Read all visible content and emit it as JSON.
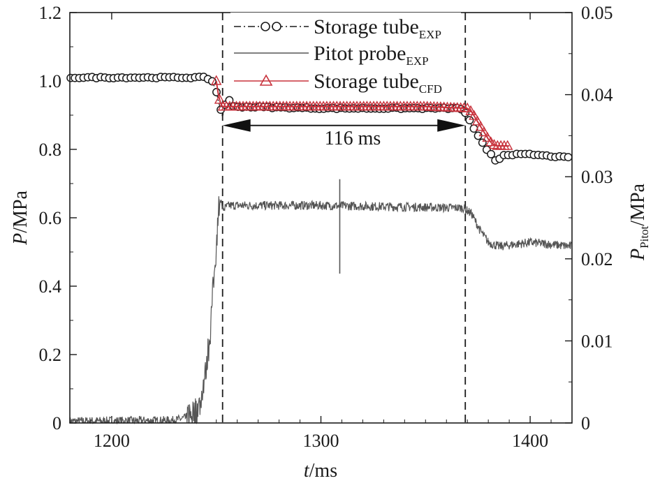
{
  "chart_data": {
    "type": "line",
    "title": "",
    "xlabel": {
      "var": "t",
      "unit": "/ms"
    },
    "ylabel_left": {
      "var": "P",
      "unit": "/MPa"
    },
    "ylabel_right": {
      "var": "P",
      "sub": "Pitot",
      "unit": "/MPa"
    },
    "xlim": [
      1180,
      1420
    ],
    "ylim_left": [
      0,
      1.2
    ],
    "ylim_right": [
      0,
      0.05
    ],
    "x_ticks": [
      1200,
      1300,
      1400
    ],
    "x_tick_labels": [
      "1200",
      "1300",
      "1400"
    ],
    "y_left_ticks": [
      0,
      0.2,
      0.4,
      0.6,
      0.8,
      1.0,
      1.2
    ],
    "y_left_tick_labels": [
      "0",
      "0.2",
      "0.4",
      "0.6",
      "0.8",
      "1.0",
      "1.2"
    ],
    "y_right_ticks": [
      0,
      0.01,
      0.02,
      0.03,
      0.04,
      0.05
    ],
    "y_right_tick_labels": [
      "0",
      "0.01",
      "0.02",
      "0.03",
      "0.04",
      "0.05"
    ],
    "grid": false,
    "legend_position": "top-center",
    "colors": {
      "exp": "#1a1a1a",
      "pitot": "#555555",
      "cfd": "#c8323c"
    },
    "series": [
      {
        "name": "Storage tube",
        "sub": "EXP",
        "axis": "left",
        "marker": "circle",
        "line": "dash-dot",
        "x": [
          1180,
          1245,
          1248,
          1250,
          1251,
          1252,
          1253,
          1254,
          1256,
          1258,
          1300,
          1366,
          1368,
          1370,
          1372,
          1374,
          1376,
          1378,
          1380,
          1382,
          1384,
          1386,
          1388,
          1390,
          1400,
          1420
        ],
        "y": [
          1.01,
          1.01,
          1.0,
          0.97,
          0.94,
          0.92,
          0.895,
          0.93,
          0.945,
          0.925,
          0.92,
          0.92,
          0.915,
          0.9,
          0.87,
          0.85,
          0.83,
          0.81,
          0.79,
          0.785,
          0.76,
          0.78,
          0.785,
          0.785,
          0.785,
          0.775
        ]
      },
      {
        "name": "Pitot probe",
        "sub": "EXP",
        "axis": "right",
        "marker": "none",
        "line": "solid",
        "x": [
          1180,
          1230,
          1238,
          1242,
          1245,
          1247,
          1249,
          1251,
          1252,
          1253,
          1256,
          1300,
          1368,
          1372,
          1376,
          1380,
          1385,
          1400,
          1420
        ],
        "y": [
          0.0002,
          0.0003,
          0.0008,
          0.002,
          0.006,
          0.011,
          0.018,
          0.026,
          0.0275,
          0.026,
          0.0265,
          0.0265,
          0.0262,
          0.0255,
          0.0235,
          0.022,
          0.0215,
          0.022,
          0.0215
        ],
        "spike": {
          "x": 1309,
          "y_min": 0.0182,
          "y_max": 0.0297
        }
      },
      {
        "name": "Storage tube",
        "sub": "CFD",
        "axis": "left",
        "marker": "triangle",
        "line": "solid",
        "x": [
          1250,
          1251,
          1252,
          1253,
          1260,
          1300,
          1350,
          1370,
          1372,
          1374,
          1376,
          1378,
          1380,
          1382,
          1384,
          1386,
          1388,
          1390
        ],
        "y": [
          1.0,
          0.96,
          0.935,
          0.925,
          0.925,
          0.925,
          0.925,
          0.92,
          0.91,
          0.89,
          0.87,
          0.85,
          0.83,
          0.815,
          0.81,
          0.81,
          0.81,
          0.81
        ]
      }
    ],
    "annotations": {
      "duration_label": "116 ms",
      "arrow_from_x": 1253,
      "arrow_to_x": 1369,
      "arrow_y": 0.87,
      "vlines_x": [
        1253,
        1369
      ]
    }
  }
}
